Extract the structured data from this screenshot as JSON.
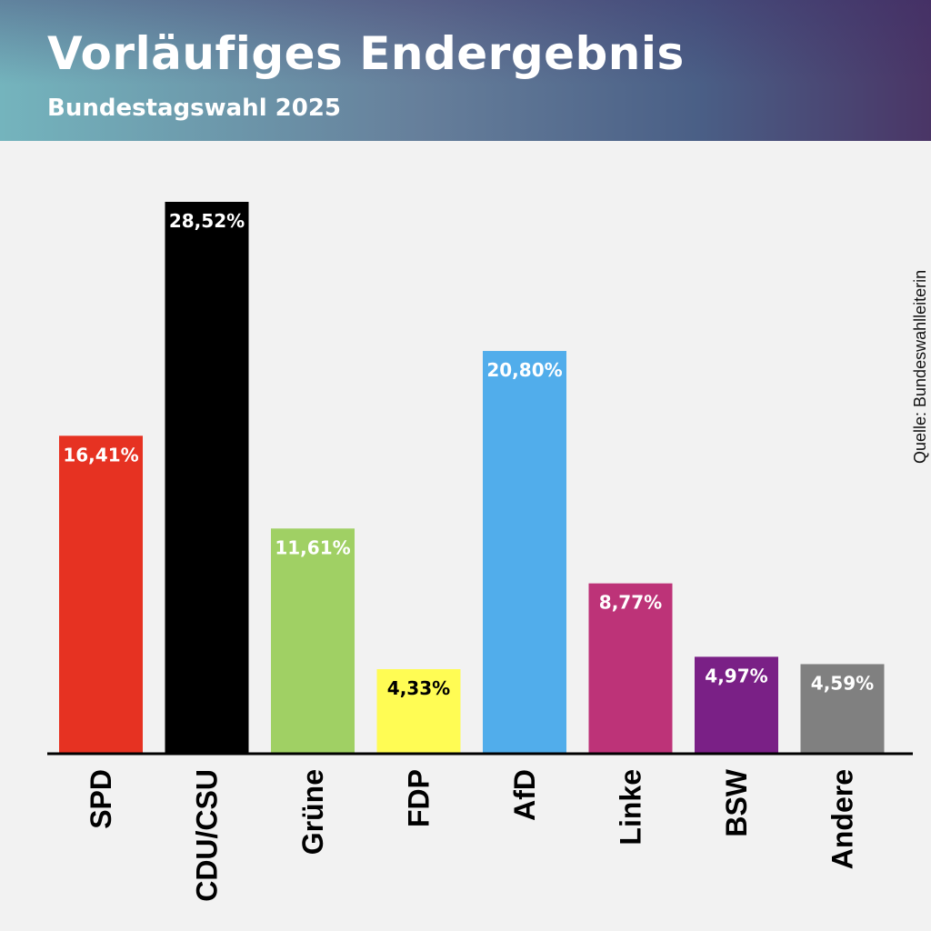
{
  "header": {
    "title": "Vorläufiges Endergebnis",
    "subtitle": "Bundestagswahl 2025"
  },
  "source": "Quelle: Bundeswahlleiterin",
  "chart_data": {
    "type": "bar",
    "categories": [
      "SPD",
      "CDU/CSU",
      "Grüne",
      "FDP",
      "AfD",
      "Linke",
      "BSW",
      "Andere"
    ],
    "values": [
      16.41,
      28.52,
      11.61,
      4.33,
      20.8,
      8.77,
      4.97,
      4.59
    ],
    "value_labels": [
      "16,41%",
      "28,52%",
      "11,61%",
      "4,33%",
      "20,80%",
      "8,77%",
      "4,97%",
      "4,59%"
    ],
    "colors": [
      "#e63222",
      "#000000",
      "#a0d064",
      "#fffc54",
      "#51adeb",
      "#bd3378",
      "#7a2086",
      "#808080"
    ],
    "label_colors": [
      "#ffffff",
      "#ffffff",
      "#ffffff",
      "#000000",
      "#ffffff",
      "#ffffff",
      "#ffffff",
      "#ffffff"
    ],
    "title": "Vorläufiges Endergebnis",
    "subtitle": "Bundestagswahl 2025",
    "xlabel": "",
    "ylabel": "",
    "grid": false,
    "legend": "none"
  }
}
